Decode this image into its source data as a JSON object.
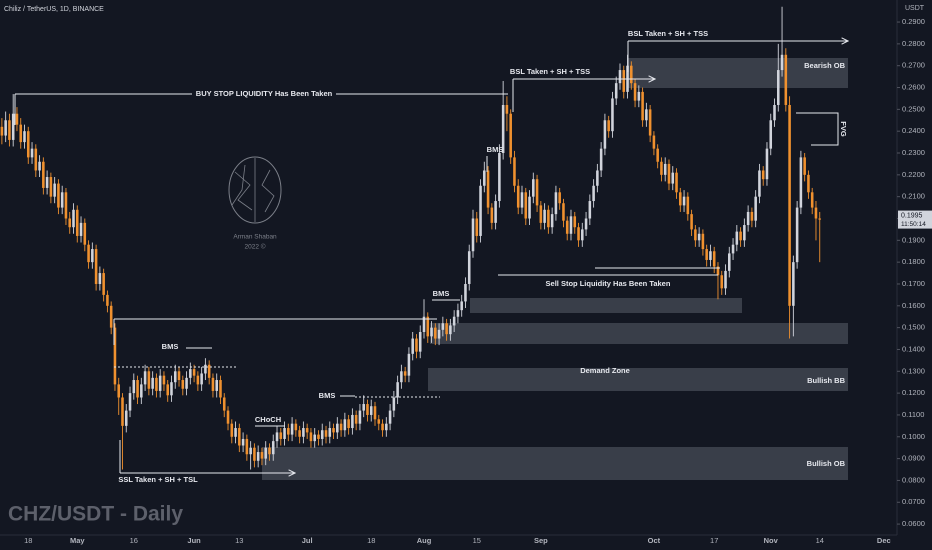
{
  "chart_data": {
    "type": "candlestick",
    "title": "Chiliz / TetherUS, 1D, BINANCE",
    "watermark": "CHZ/USDT - Daily",
    "y_axis_label": "USDT",
    "up_color": "#d1d4dc",
    "down_color": "#f0912f",
    "grid": false,
    "ylim": [
      0.055,
      0.3001
    ],
    "yticks": [
      {
        "value": 0.29,
        "label": "0.2900"
      },
      {
        "value": 0.28,
        "label": "0.2800"
      },
      {
        "value": 0.27,
        "label": "0.2700"
      },
      {
        "value": 0.26,
        "label": "0.2600"
      },
      {
        "value": 0.25,
        "label": "0.2500"
      },
      {
        "value": 0.24,
        "label": "0.2400"
      },
      {
        "value": 0.23,
        "label": "0.2300"
      },
      {
        "value": 0.22,
        "label": "0.2200"
      },
      {
        "value": 0.21,
        "label": "0.2100"
      },
      {
        "value": 0.2,
        "label": "0.2000"
      },
      {
        "value": 0.19,
        "label": "0.1900"
      },
      {
        "value": 0.18,
        "label": "0.1800"
      },
      {
        "value": 0.17,
        "label": "0.1700"
      },
      {
        "value": 0.16,
        "label": "0.1600"
      },
      {
        "value": 0.15,
        "label": "0.1500"
      },
      {
        "value": 0.14,
        "label": "0.1400"
      },
      {
        "value": 0.13,
        "label": "0.1300"
      },
      {
        "value": 0.12,
        "label": "0.1200"
      },
      {
        "value": 0.11,
        "label": "0.1100"
      },
      {
        "value": 0.1,
        "label": "0.1000"
      },
      {
        "value": 0.09,
        "label": "0.0900"
      },
      {
        "value": 0.08,
        "label": "0.0800"
      },
      {
        "value": 0.07,
        "label": "0.0700"
      },
      {
        "value": 0.06,
        "label": "0.0600"
      }
    ],
    "last_price": 0.1995,
    "countdown": "11:50:14",
    "logo": {
      "name": "Arman Shaban",
      "year": "2022 ©"
    },
    "annotations": [
      "BUY STOP LIQUIDITY Has Been Taken",
      "BSL Taken + SH + TSS",
      "BSL Taken + SH + TSS",
      "Bearish OB",
      "FVG",
      "BMS",
      "Sell Stop Liquidity Has Been Taken",
      "BMS",
      "Demand Zone",
      "Bullish BB",
      "BMS",
      "BMS",
      "CHoCH",
      "Bullish OB",
      "SSL Taken + SH + TSL"
    ],
    "categories": [
      null,
      null,
      null,
      null,
      null,
      null,
      null,
      "18",
      null,
      null,
      null,
      null,
      null,
      null,
      null,
      null,
      null,
      null,
      null,
      null,
      "May",
      null,
      null,
      null,
      null,
      null,
      null,
      null,
      null,
      null,
      null,
      null,
      null,
      null,
      null,
      "16",
      null,
      null,
      null,
      null,
      null,
      null,
      null,
      null,
      null,
      null,
      null,
      null,
      null,
      null,
      null,
      "Jun",
      null,
      null,
      null,
      null,
      null,
      null,
      null,
      null,
      null,
      null,
      null,
      "13",
      null,
      null,
      null,
      null,
      null,
      null,
      null,
      null,
      null,
      null,
      null,
      null,
      null,
      null,
      null,
      null,
      null,
      "Jul",
      null,
      null,
      null,
      null,
      null,
      null,
      null,
      null,
      null,
      null,
      null,
      null,
      null,
      null,
      null,
      null,
      "18",
      null,
      null,
      null,
      null,
      null,
      null,
      null,
      null,
      null,
      null,
      null,
      null,
      null,
      "Aug",
      null,
      null,
      null,
      null,
      null,
      null,
      null,
      null,
      null,
      null,
      null,
      null,
      null,
      "15",
      null,
      null,
      null,
      null,
      null,
      null,
      null,
      null,
      null,
      null,
      null,
      null,
      null,
      null,
      null,
      null,
      "Sep",
      null,
      null,
      null,
      null,
      null,
      null,
      null,
      null,
      null,
      null,
      null,
      null,
      null,
      null,
      null,
      null,
      null,
      null,
      null,
      null,
      null,
      null,
      null,
      null,
      null,
      null,
      null,
      null,
      null,
      "Oct",
      null,
      null,
      null,
      null,
      null,
      null,
      null,
      null,
      null,
      null,
      null,
      null,
      null,
      null,
      null,
      "17",
      null,
      null,
      null,
      null,
      null,
      null,
      null,
      null,
      null,
      null,
      null,
      null,
      null,
      null,
      "Nov",
      null,
      null,
      null,
      null,
      null,
      null,
      null,
      null,
      null,
      null,
      null,
      null,
      "14",
      null,
      null,
      null,
      null,
      null,
      null,
      null,
      null,
      null,
      null,
      null,
      null,
      null,
      null,
      null,
      null,
      "Dec",
      null,
      null,
      null
    ],
    "open": [
      0.242,
      0.238,
      0.245,
      0.236,
      0.248,
      0.243,
      0.235,
      0.24,
      0.228,
      0.232,
      0.222,
      0.226,
      0.214,
      0.219,
      0.21,
      0.216,
      0.205,
      0.212,
      0.2,
      0.196,
      0.204,
      0.192,
      0.198,
      0.188,
      0.18,
      0.186,
      0.17,
      0.175,
      0.165,
      0.16,
      0.15,
      0.124,
      0.118,
      0.105,
      0.112,
      0.12,
      0.126,
      0.118,
      0.124,
      0.13,
      0.122,
      0.127,
      0.121,
      0.128,
      0.124,
      0.119,
      0.125,
      0.13,
      0.126,
      0.122,
      0.127,
      0.131,
      0.128,
      0.124,
      0.129,
      0.133,
      0.127,
      0.121,
      0.126,
      0.118,
      0.112,
      0.106,
      0.1,
      0.104,
      0.096,
      0.099,
      0.092,
      0.095,
      0.089,
      0.093,
      0.09,
      0.095,
      0.092,
      0.098,
      0.102,
      0.099,
      0.104,
      0.101,
      0.106,
      0.103,
      0.1,
      0.104,
      0.102,
      0.098,
      0.101,
      0.099,
      0.103,
      0.1,
      0.104,
      0.102,
      0.106,
      0.103,
      0.108,
      0.104,
      0.11,
      0.106,
      0.112,
      0.115,
      0.11,
      0.114,
      0.108,
      0.106,
      0.103,
      0.106,
      0.112,
      0.118,
      0.125,
      0.13,
      0.128,
      0.138,
      0.145,
      0.139,
      0.148,
      0.155,
      0.146,
      0.15,
      0.145,
      0.149,
      0.152,
      0.147,
      0.151,
      0.155,
      0.158,
      0.162,
      0.17,
      0.185,
      0.2,
      0.192,
      0.215,
      0.222,
      0.205,
      0.198,
      0.208,
      0.23,
      0.252,
      0.248,
      0.228,
      0.215,
      0.205,
      0.212,
      0.2,
      0.21,
      0.218,
      0.206,
      0.198,
      0.204,
      0.196,
      0.202,
      0.212,
      0.207,
      0.199,
      0.193,
      0.201,
      0.196,
      0.19,
      0.195,
      0.2,
      0.208,
      0.215,
      0.222,
      0.232,
      0.245,
      0.24,
      0.255,
      0.262,
      0.268,
      0.258,
      0.27,
      0.262,
      0.254,
      0.258,
      0.245,
      0.25,
      0.238,
      0.232,
      0.226,
      0.22,
      0.225,
      0.216,
      0.221,
      0.212,
      0.206,
      0.21,
      0.202,
      0.195,
      0.19,
      0.193,
      0.186,
      0.181,
      0.185,
      0.178,
      0.174,
      0.168,
      0.176,
      0.184,
      0.188,
      0.194,
      0.19,
      0.197,
      0.203,
      0.199,
      0.21,
      0.222,
      0.218,
      0.232,
      0.245,
      0.252,
      0.268,
      0.275,
      0.252,
      0.16,
      0.18,
      0.205,
      0.228,
      0.22,
      0.212,
      0.205,
      0.2,
      null,
      null,
      null,
      null,
      null,
      null,
      null,
      null,
      null,
      null,
      null,
      null,
      null,
      null,
      null,
      null,
      null,
      null,
      null,
      null
    ],
    "high": [
      0.246,
      0.249,
      0.248,
      0.257,
      0.251,
      0.246,
      0.243,
      0.242,
      0.235,
      0.234,
      0.229,
      0.228,
      0.222,
      0.221,
      0.219,
      0.218,
      0.215,
      0.214,
      0.203,
      0.207,
      0.206,
      0.201,
      0.2,
      0.19,
      0.189,
      0.188,
      0.178,
      0.177,
      0.167,
      0.162,
      0.152,
      0.127,
      0.12,
      0.115,
      0.123,
      0.129,
      0.128,
      0.127,
      0.133,
      0.132,
      0.13,
      0.129,
      0.131,
      0.13,
      0.126,
      0.128,
      0.133,
      0.132,
      0.128,
      0.13,
      0.134,
      0.133,
      0.13,
      0.132,
      0.136,
      0.135,
      0.129,
      0.129,
      0.128,
      0.12,
      0.114,
      0.108,
      0.107,
      0.106,
      0.102,
      0.101,
      0.098,
      0.097,
      0.096,
      0.095,
      0.098,
      0.097,
      0.101,
      0.105,
      0.104,
      0.107,
      0.106,
      0.109,
      0.108,
      0.105,
      0.107,
      0.106,
      0.104,
      0.104,
      0.103,
      0.106,
      0.105,
      0.107,
      0.106,
      0.109,
      0.108,
      0.111,
      0.11,
      0.113,
      0.112,
      0.115,
      0.119,
      0.117,
      0.117,
      0.116,
      0.11,
      0.108,
      0.109,
      0.115,
      0.121,
      0.128,
      0.133,
      0.132,
      0.141,
      0.148,
      0.147,
      0.151,
      0.163,
      0.157,
      0.153,
      0.152,
      0.152,
      0.155,
      0.154,
      0.154,
      0.158,
      0.161,
      0.165,
      0.173,
      0.188,
      0.204,
      0.203,
      0.218,
      0.226,
      0.224,
      0.207,
      0.211,
      0.234,
      0.263,
      0.256,
      0.25,
      0.231,
      0.218,
      0.215,
      0.214,
      0.213,
      0.221,
      0.22,
      0.208,
      0.207,
      0.206,
      0.205,
      0.215,
      0.214,
      0.209,
      0.201,
      0.204,
      0.203,
      0.198,
      0.198,
      0.203,
      0.211,
      0.218,
      0.225,
      0.235,
      0.248,
      0.247,
      0.258,
      0.265,
      0.271,
      0.27,
      0.275,
      0.272,
      0.264,
      0.261,
      0.26,
      0.253,
      0.252,
      0.24,
      0.234,
      0.228,
      0.228,
      0.227,
      0.224,
      0.223,
      0.214,
      0.213,
      0.212,
      0.204,
      0.197,
      0.196,
      0.195,
      0.188,
      0.188,
      0.187,
      0.18,
      0.176,
      0.179,
      0.187,
      0.191,
      0.197,
      0.196,
      0.2,
      0.206,
      0.205,
      0.213,
      0.225,
      0.224,
      0.235,
      0.248,
      0.255,
      0.28,
      0.297,
      0.278,
      0.256,
      0.183,
      0.208,
      0.231,
      0.23,
      0.222,
      0.214,
      0.208,
      0.203,
      null,
      null,
      null,
      null,
      null,
      null,
      null,
      null,
      null,
      null,
      null,
      null,
      null,
      null,
      null,
      null,
      null,
      null,
      null,
      null
    ],
    "low": [
      0.234,
      0.235,
      0.233,
      0.233,
      0.24,
      0.232,
      0.232,
      0.225,
      0.225,
      0.219,
      0.219,
      0.211,
      0.211,
      0.207,
      0.207,
      0.202,
      0.202,
      0.197,
      0.193,
      0.193,
      0.189,
      0.189,
      0.185,
      0.177,
      0.177,
      0.167,
      0.167,
      0.162,
      0.157,
      0.147,
      0.121,
      0.11,
      0.085,
      0.102,
      0.109,
      0.117,
      0.115,
      0.115,
      0.121,
      0.119,
      0.119,
      0.118,
      0.118,
      0.121,
      0.116,
      0.116,
      0.122,
      0.123,
      0.119,
      0.119,
      0.124,
      0.125,
      0.121,
      0.121,
      0.126,
      0.124,
      0.118,
      0.118,
      0.115,
      0.109,
      0.103,
      0.097,
      0.097,
      0.093,
      0.093,
      0.089,
      0.085,
      0.086,
      0.086,
      0.087,
      0.087,
      0.089,
      0.089,
      0.095,
      0.096,
      0.096,
      0.098,
      0.098,
      0.1,
      0.097,
      0.097,
      0.099,
      0.095,
      0.095,
      0.096,
      0.096,
      0.097,
      0.097,
      0.099,
      0.099,
      0.1,
      0.1,
      0.101,
      0.101,
      0.103,
      0.103,
      0.109,
      0.107,
      0.107,
      0.105,
      0.103,
      0.1,
      0.1,
      0.103,
      0.109,
      0.115,
      0.122,
      0.125,
      0.125,
      0.135,
      0.136,
      0.136,
      0.145,
      0.143,
      0.143,
      0.142,
      0.142,
      0.146,
      0.144,
      0.144,
      0.148,
      0.152,
      0.155,
      0.159,
      0.167,
      0.182,
      0.189,
      0.189,
      0.212,
      0.202,
      0.195,
      0.195,
      0.205,
      0.227,
      0.24,
      0.225,
      0.212,
      0.202,
      0.202,
      0.197,
      0.197,
      0.207,
      0.203,
      0.195,
      0.195,
      0.193,
      0.193,
      0.199,
      0.204,
      0.196,
      0.19,
      0.19,
      0.193,
      0.187,
      0.187,
      0.192,
      0.197,
      0.205,
      0.212,
      0.219,
      0.229,
      0.237,
      0.237,
      0.252,
      0.259,
      0.255,
      0.255,
      0.259,
      0.251,
      0.251,
      0.242,
      0.242,
      0.235,
      0.229,
      0.223,
      0.217,
      0.217,
      0.213,
      0.213,
      0.209,
      0.203,
      0.203,
      0.199,
      0.192,
      0.187,
      0.187,
      0.183,
      0.178,
      0.178,
      0.175,
      0.163,
      0.165,
      0.165,
      0.173,
      0.181,
      0.185,
      0.187,
      0.187,
      0.194,
      0.196,
      0.196,
      0.207,
      0.215,
      0.215,
      0.229,
      0.242,
      0.249,
      0.265,
      0.249,
      0.145,
      0.146,
      0.177,
      0.202,
      0.217,
      0.209,
      0.202,
      0.19,
      0.18,
      null,
      null,
      null,
      null,
      null,
      null,
      null,
      null,
      null,
      null,
      null,
      null,
      null,
      null,
      null,
      null,
      null,
      null,
      null,
      null
    ],
    "close": [
      0.238,
      0.245,
      0.236,
      0.248,
      0.243,
      0.235,
      0.24,
      0.228,
      0.232,
      0.222,
      0.226,
      0.214,
      0.219,
      0.21,
      0.216,
      0.205,
      0.212,
      0.2,
      0.196,
      0.204,
      0.192,
      0.198,
      0.188,
      0.18,
      0.186,
      0.17,
      0.175,
      0.165,
      0.16,
      0.15,
      0.124,
      0.118,
      0.105,
      0.112,
      0.12,
      0.126,
      0.118,
      0.124,
      0.13,
      0.122,
      0.127,
      0.121,
      0.128,
      0.124,
      0.119,
      0.125,
      0.13,
      0.126,
      0.122,
      0.127,
      0.131,
      0.128,
      0.124,
      0.129,
      0.133,
      0.127,
      0.121,
      0.126,
      0.118,
      0.112,
      0.106,
      0.1,
      0.104,
      0.096,
      0.099,
      0.092,
      0.095,
      0.089,
      0.093,
      0.09,
      0.095,
      0.092,
      0.098,
      0.102,
      0.099,
      0.104,
      0.101,
      0.106,
      0.103,
      0.1,
      0.104,
      0.102,
      0.098,
      0.101,
      0.099,
      0.103,
      0.1,
      0.104,
      0.102,
      0.106,
      0.103,
      0.108,
      0.104,
      0.11,
      0.106,
      0.112,
      0.115,
      0.11,
      0.114,
      0.108,
      0.106,
      0.103,
      0.106,
      0.112,
      0.118,
      0.125,
      0.13,
      0.128,
      0.138,
      0.145,
      0.139,
      0.148,
      0.155,
      0.146,
      0.15,
      0.145,
      0.149,
      0.152,
      0.147,
      0.151,
      0.155,
      0.158,
      0.162,
      0.17,
      0.185,
      0.2,
      0.192,
      0.215,
      0.222,
      0.205,
      0.198,
      0.208,
      0.23,
      0.252,
      0.248,
      0.228,
      0.215,
      0.205,
      0.212,
      0.2,
      0.21,
      0.218,
      0.206,
      0.198,
      0.204,
      0.196,
      0.202,
      0.212,
      0.207,
      0.199,
      0.193,
      0.201,
      0.196,
      0.19,
      0.195,
      0.2,
      0.208,
      0.215,
      0.222,
      0.232,
      0.245,
      0.24,
      0.255,
      0.262,
      0.268,
      0.258,
      0.27,
      0.262,
      0.254,
      0.258,
      0.245,
      0.25,
      0.238,
      0.232,
      0.226,
      0.22,
      0.225,
      0.216,
      0.221,
      0.212,
      0.206,
      0.21,
      0.202,
      0.195,
      0.19,
      0.193,
      0.186,
      0.181,
      0.185,
      0.178,
      0.174,
      0.168,
      0.176,
      0.184,
      0.188,
      0.194,
      0.19,
      0.197,
      0.203,
      0.199,
      0.21,
      0.222,
      0.218,
      0.232,
      0.245,
      0.252,
      0.268,
      0.275,
      0.252,
      0.16,
      0.18,
      0.205,
      0.228,
      0.22,
      0.212,
      0.205,
      0.2,
      0.1995,
      null,
      null,
      null,
      null,
      null,
      null,
      null,
      null,
      null,
      null,
      null,
      null,
      null,
      null,
      null,
      null,
      null,
      null,
      null,
      null
    ]
  }
}
